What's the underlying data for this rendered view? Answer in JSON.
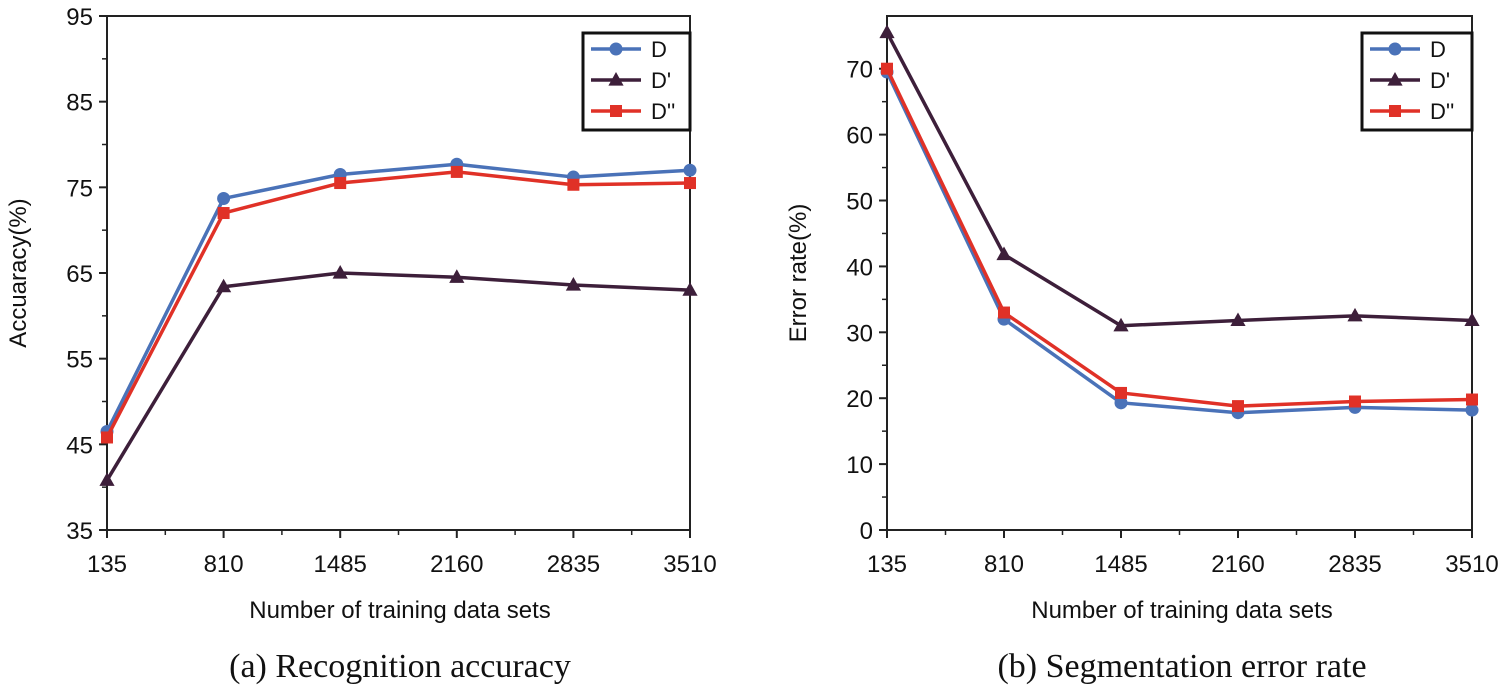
{
  "chart_data": [
    {
      "type": "line",
      "caption": "(a) Recognition accuracy",
      "xlabel": "Number of training data sets",
      "ylabel": "Accuaracy(%)",
      "x": [
        135,
        810,
        1485,
        2160,
        2835,
        3510
      ],
      "x_tick_labels": [
        "135",
        "810",
        "1485",
        "2160",
        "2835",
        "3510"
      ],
      "ylim": [
        35,
        95
      ],
      "y_ticks": [
        35,
        45,
        55,
        65,
        75,
        85,
        95
      ],
      "y_tick_labels": [
        "35",
        "45",
        "55",
        "65",
        "75",
        "85",
        "95"
      ],
      "grid": false,
      "legend_position": "top-right",
      "series": [
        {
          "name": "D",
          "color": "#4a72b8",
          "marker": "circle",
          "values": [
            46.5,
            73.7,
            76.5,
            77.7,
            76.2,
            77.0
          ]
        },
        {
          "name": "D'",
          "color": "#3d1f3a",
          "marker": "triangle",
          "values": [
            40.8,
            63.4,
            65.0,
            64.5,
            63.6,
            63.0
          ]
        },
        {
          "name": "D''",
          "color": "#e03127",
          "marker": "square",
          "values": [
            45.8,
            72.0,
            75.5,
            76.8,
            75.3,
            75.5
          ]
        }
      ]
    },
    {
      "type": "line",
      "caption": "(b) Segmentation error rate",
      "xlabel": "Number of training data sets",
      "ylabel": "Error rate(%)",
      "x": [
        135,
        810,
        1485,
        2160,
        2835,
        3510
      ],
      "x_tick_labels": [
        "135",
        "810",
        "1485",
        "2160",
        "2835",
        "3510"
      ],
      "ylim": [
        0,
        78
      ],
      "y_ticks": [
        0,
        10,
        20,
        30,
        40,
        50,
        60,
        70
      ],
      "y_tick_labels": [
        "0",
        "10",
        "20",
        "30",
        "40",
        "50",
        "60",
        "70"
      ],
      "grid": false,
      "legend_position": "top-right",
      "series": [
        {
          "name": "D",
          "color": "#4a72b8",
          "marker": "circle",
          "values": [
            69.5,
            32.0,
            19.3,
            17.8,
            18.6,
            18.2
          ]
        },
        {
          "name": "D'",
          "color": "#3d1f3a",
          "marker": "triangle",
          "values": [
            75.5,
            41.8,
            31.0,
            31.8,
            32.5,
            31.8
          ]
        },
        {
          "name": "D''",
          "color": "#e03127",
          "marker": "square",
          "values": [
            70.0,
            33.0,
            20.8,
            18.8,
            19.5,
            19.8
          ]
        }
      ]
    }
  ]
}
